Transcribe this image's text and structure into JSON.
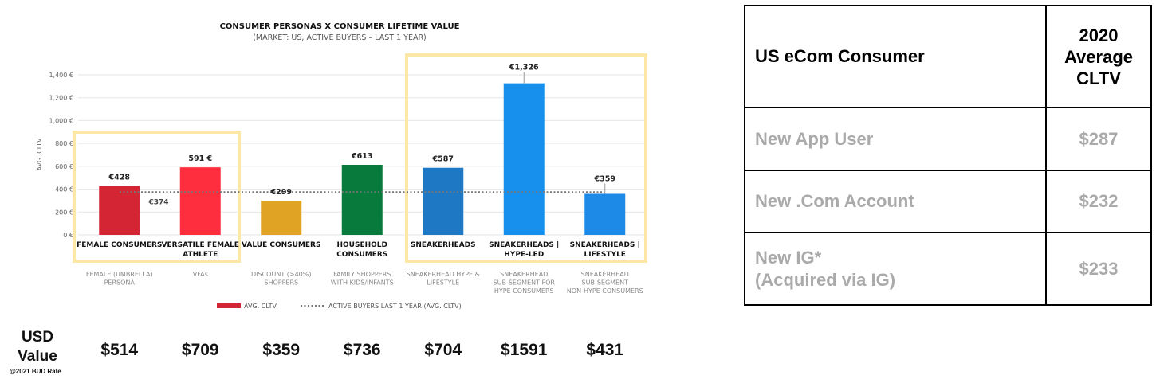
{
  "chart_data": {
    "type": "bar",
    "title": "CONSUMER PERSONAS X CONSUMER LIFETIME VALUE",
    "subtitle": "(MARKET: US, ACTIVE BUYERS – LAST 1 YEAR)",
    "ylabel": "AVG. CLTV",
    "ylim": [
      0,
      1400
    ],
    "yticks": [
      "1,400 €",
      "1,200 €",
      "1,000 €",
      "800 €",
      "600 €",
      "400 €",
      "200 €",
      "0 €"
    ],
    "categories": [
      "FEMALE CONSUMERS",
      "VERSATILE FEMALE ATHLETE",
      "VALUE CONSUMERS",
      "HOUSEHOLD CONSUMERS",
      "SNEAKERHEADS",
      "SNEAKERHEADS | HYPE-LED",
      "SNEAKERHEADS | LIFESTYLE"
    ],
    "subcategories": [
      "FEMALE (UMBRELLA) PERSONA",
      "VFAs",
      "DISCOUNT (>40%) SHOPPERS",
      "FAMILY SHOPPERS WITH KIDS/INFANTS",
      "SNEAKERHEAD HYPE & LIFESTYLE",
      "SNEAKERHEAD SUB-SEGMENT FOR HYPE CONSUMERS",
      "SNEAKERHEAD SUB-SEGMENT NON-HYPE CONSUMERS"
    ],
    "series": [
      {
        "name": "AVG. CLTV",
        "values": [
          428,
          591,
          299,
          613,
          587,
          1326,
          359
        ]
      }
    ],
    "value_labels": [
      "€428",
      "591 €",
      "€299",
      "€613",
      "€587",
      "€1,326",
      "€359"
    ],
    "bar_colors": [
      "#d42535",
      "#ff2e3f",
      "#e0a324",
      "#087b3c",
      "#1e78c4",
      "#1690ec",
      "#1c8ae6"
    ],
    "reference_line": {
      "name": "ACTIVE BUYERS LAST 1 YEAR (AVG. CLTV)",
      "value": 374,
      "label": "€374"
    },
    "legend": [
      "AVG. CLTV",
      "ACTIVE BUYERS LAST 1 YEAR (AVG. CLTV)"
    ],
    "legend_position": "bottom",
    "grid": true
  },
  "usd": {
    "title_line1": "USD",
    "title_line2": "Value",
    "note": "@2021 BUD Rate",
    "values": [
      "$514",
      "$709",
      "$359",
      "$736",
      "$704",
      "$1591",
      "$431"
    ]
  },
  "table": {
    "header_label": "US eCom Consumer",
    "header_value_line1": "2020",
    "header_value_line2": "Average",
    "header_value_line3": "CLTV",
    "rows": [
      {
        "label": "New App User",
        "label2": "",
        "value": "$287"
      },
      {
        "label": "New .Com Account",
        "label2": "",
        "value": "$232"
      },
      {
        "label": "New IG*",
        "label2": "(Acquired via IG)",
        "value": "$233"
      }
    ]
  },
  "colors": {
    "highlight_box": "#fbe7a6",
    "reference_line": "#777777",
    "table_muted_text": "#aaaaaa"
  }
}
